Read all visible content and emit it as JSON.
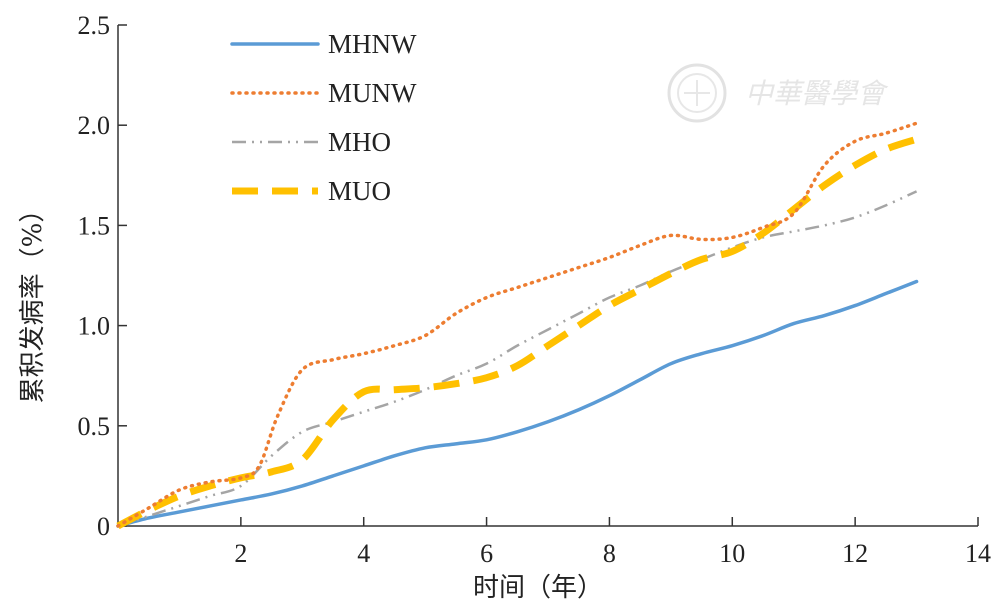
{
  "chart_data": {
    "type": "line",
    "xlabel": "时间（年）",
    "ylabel": "累积发病率（%）",
    "xlim": [
      0,
      14
    ],
    "ylim": [
      0,
      2.5
    ],
    "xticks": [
      2,
      4,
      6,
      8,
      10,
      12,
      14
    ],
    "yticks": [
      0,
      0.5,
      1.0,
      1.5,
      2.0,
      2.5
    ],
    "ytick_labels": [
      "0",
      "0.5",
      "1.0",
      "1.5",
      "2.0",
      "2.5"
    ],
    "grid": false,
    "legend_position": "top-left",
    "series": [
      {
        "name": "MHNW",
        "color": "#5b9bd5",
        "style": "solid",
        "x": [
          0,
          0.5,
          1,
          1.5,
          2,
          2.5,
          3,
          3.5,
          4,
          4.5,
          5,
          5.5,
          6,
          6.5,
          7,
          7.5,
          8,
          8.5,
          9,
          9.5,
          10,
          10.5,
          11,
          11.5,
          12,
          12.5,
          13
        ],
        "y": [
          0,
          0.04,
          0.07,
          0.1,
          0.13,
          0.16,
          0.2,
          0.25,
          0.3,
          0.35,
          0.39,
          0.41,
          0.43,
          0.47,
          0.52,
          0.58,
          0.65,
          0.73,
          0.81,
          0.86,
          0.9,
          0.95,
          1.01,
          1.05,
          1.1,
          1.16,
          1.22
        ]
      },
      {
        "name": "MUNW",
        "color": "#ed7d31",
        "style": "dotted",
        "x": [
          0,
          0.5,
          1,
          1.5,
          2,
          2.3,
          2.6,
          3,
          3.5,
          4,
          4.5,
          5,
          5.5,
          6,
          6.5,
          7,
          7.5,
          8,
          8.5,
          9,
          9.5,
          10,
          10.5,
          11,
          11.5,
          12,
          12.5,
          13
        ],
        "y": [
          0,
          0.09,
          0.18,
          0.22,
          0.24,
          0.3,
          0.55,
          0.78,
          0.83,
          0.86,
          0.9,
          0.95,
          1.06,
          1.14,
          1.19,
          1.24,
          1.29,
          1.34,
          1.4,
          1.45,
          1.43,
          1.44,
          1.49,
          1.56,
          1.8,
          1.92,
          1.96,
          2.01
        ]
      },
      {
        "name": "MHO",
        "color": "#a5a5a5",
        "style": "dash-dot-dot",
        "x": [
          0,
          0.5,
          1,
          1.5,
          2,
          2.5,
          3,
          3.5,
          4,
          4.5,
          5,
          5.5,
          6,
          6.5,
          7,
          7.5,
          8,
          8.5,
          9,
          9.5,
          10,
          10.5,
          11,
          11.5,
          12,
          12.5,
          13
        ],
        "y": [
          0,
          0.05,
          0.1,
          0.15,
          0.2,
          0.35,
          0.47,
          0.52,
          0.57,
          0.62,
          0.68,
          0.75,
          0.81,
          0.9,
          0.98,
          1.06,
          1.14,
          1.2,
          1.27,
          1.33,
          1.39,
          1.44,
          1.47,
          1.5,
          1.54,
          1.6,
          1.67
        ]
      },
      {
        "name": "MUO",
        "color": "#ffc000",
        "style": "dashed",
        "x": [
          0,
          0.5,
          1,
          1.5,
          2,
          2.5,
          3,
          3.5,
          4,
          4.5,
          5,
          5.5,
          6,
          6.5,
          7,
          7.5,
          8,
          8.5,
          9,
          9.5,
          10,
          10.5,
          11,
          11.5,
          12,
          12.5,
          13
        ],
        "y": [
          0,
          0.08,
          0.15,
          0.2,
          0.24,
          0.27,
          0.33,
          0.53,
          0.67,
          0.68,
          0.69,
          0.71,
          0.74,
          0.8,
          0.9,
          1.0,
          1.1,
          1.18,
          1.26,
          1.33,
          1.37,
          1.46,
          1.58,
          1.7,
          1.8,
          1.88,
          1.93
        ]
      }
    ]
  }
}
